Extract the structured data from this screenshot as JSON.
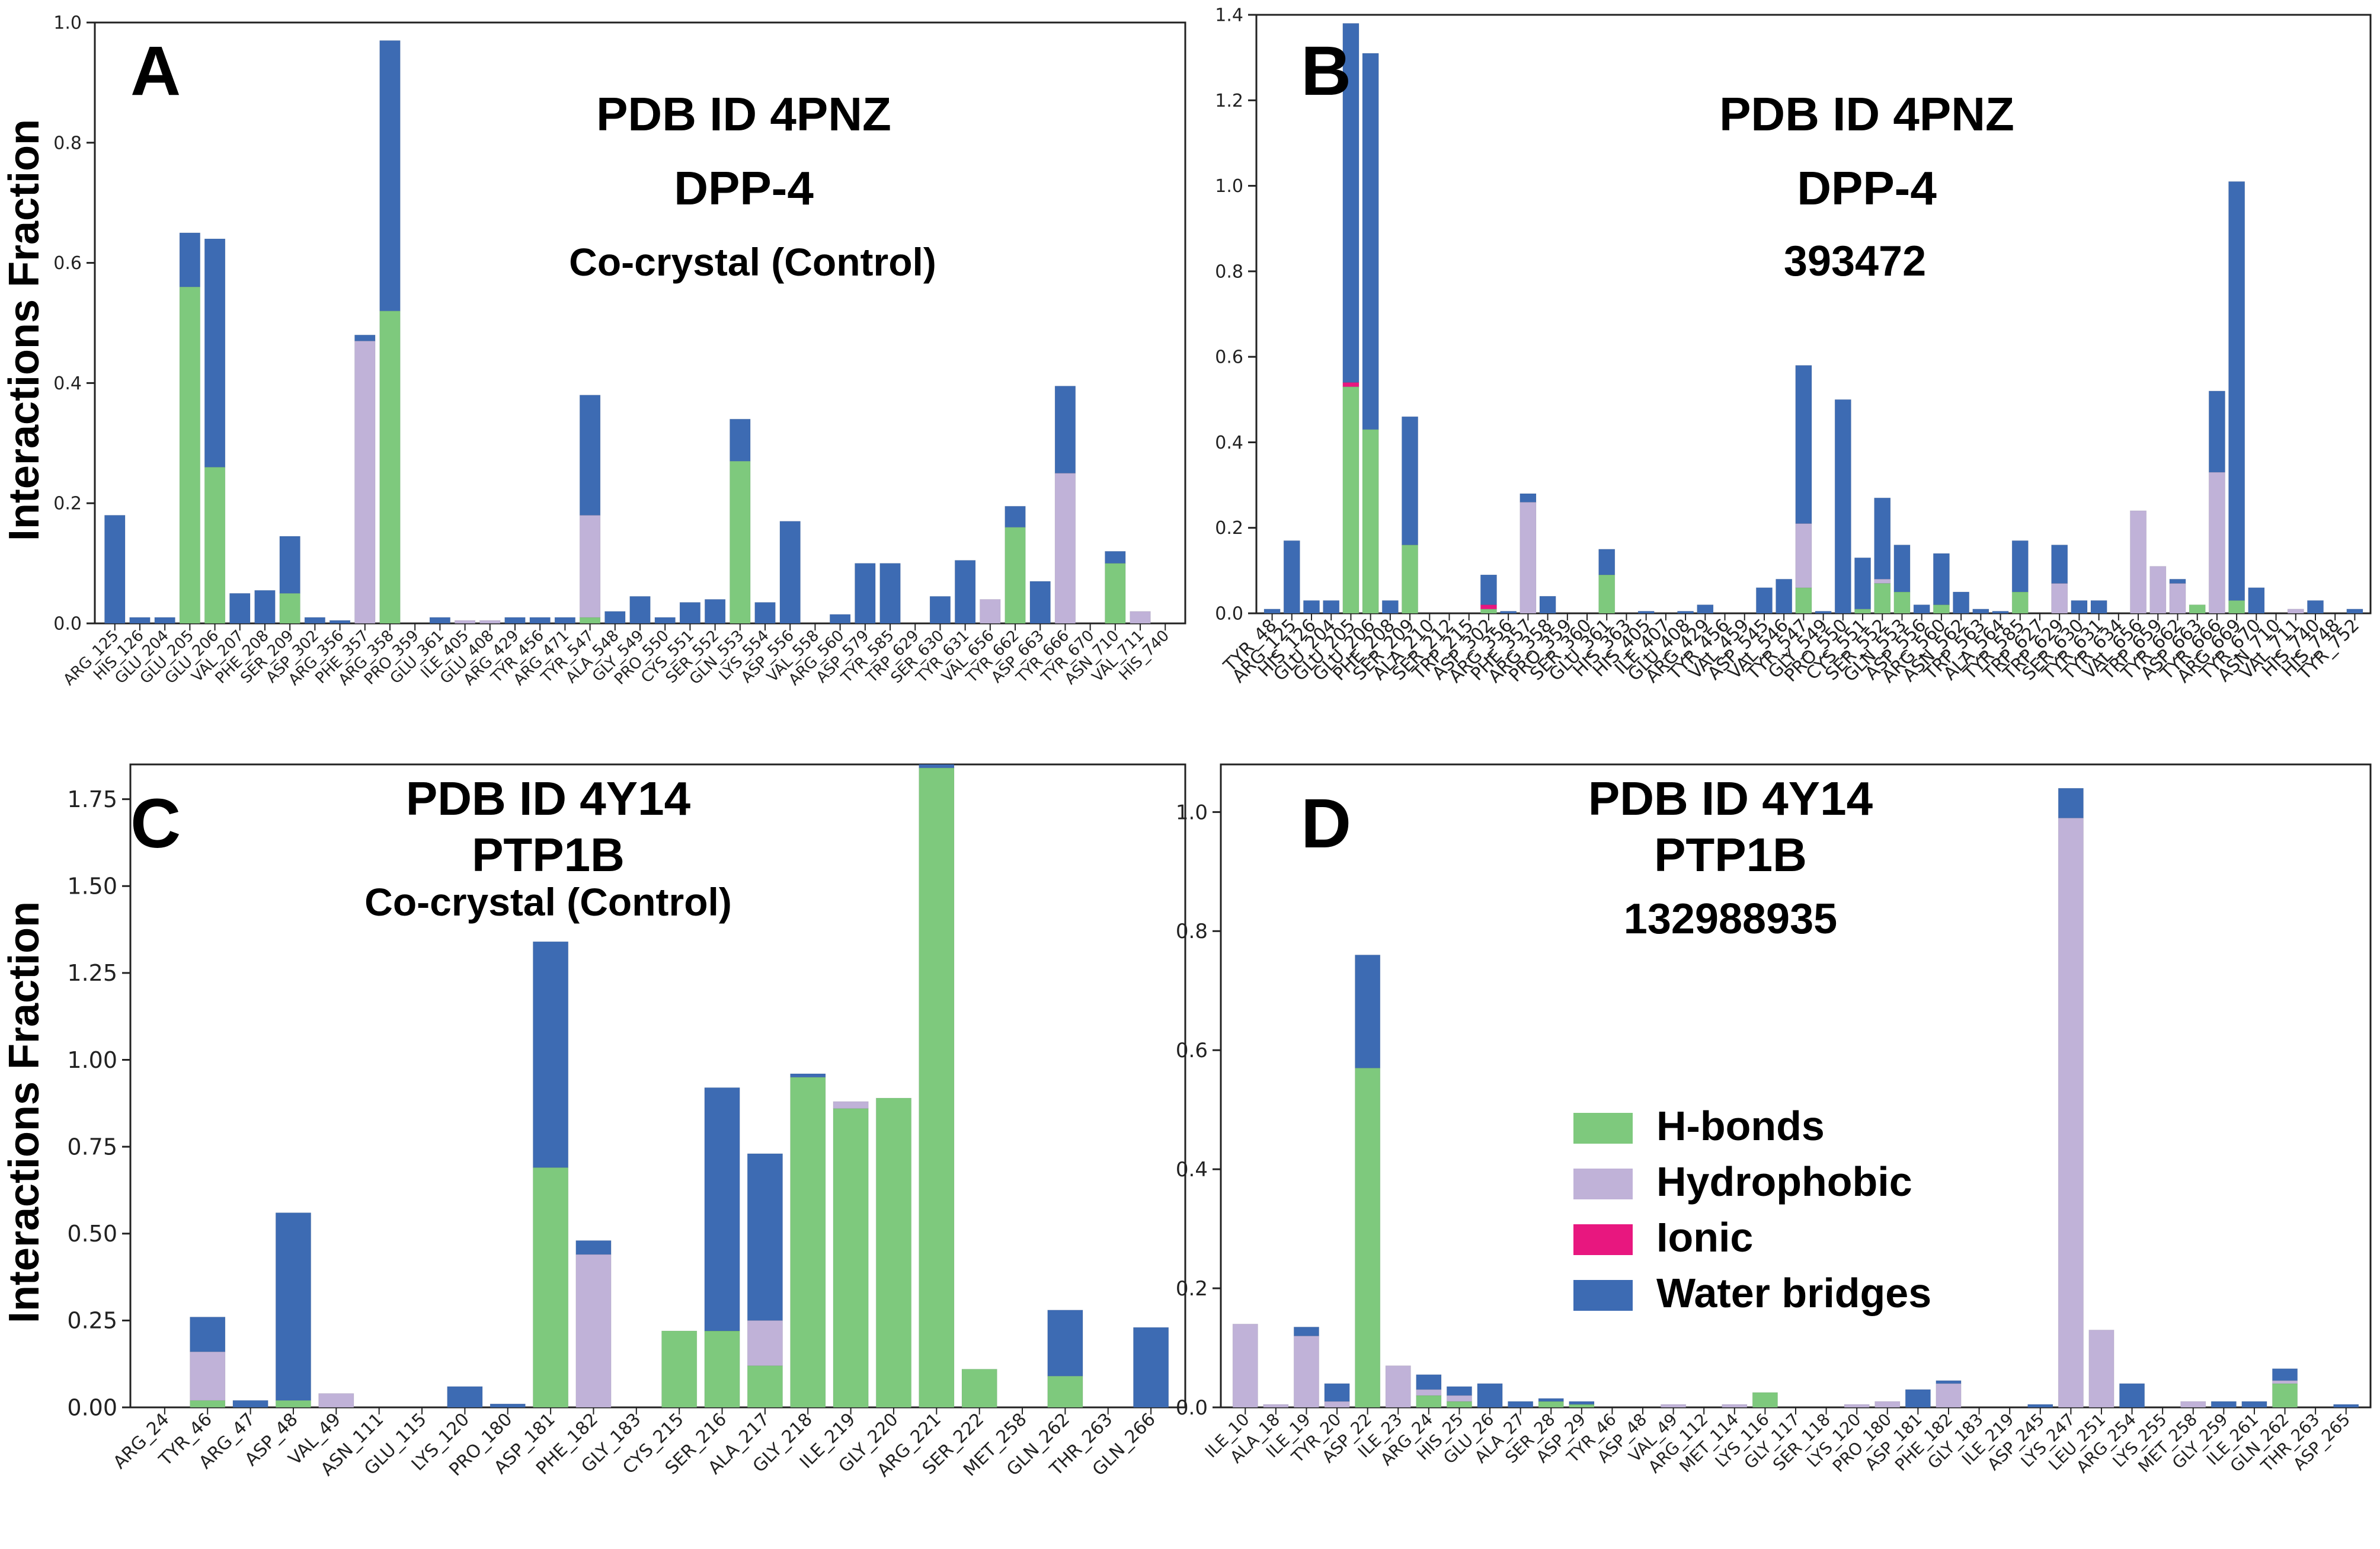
{
  "colors": {
    "hbonds": "#7ec97d",
    "hydrophobic": "#c0b2d8",
    "ionic": "#e8177f",
    "water": "#3d6bb3"
  },
  "legend": {
    "items": [
      {
        "key": "hbonds",
        "label": "H-bonds"
      },
      {
        "key": "hydrophobic",
        "label": "Hydrophobic"
      },
      {
        "key": "ionic",
        "label": "Ionic"
      },
      {
        "key": "water",
        "label": "Water bridges"
      }
    ]
  },
  "chart_data": [
    {
      "id": "A",
      "type": "bar",
      "stacked": true,
      "title_lines": [
        "PDB ID 4PNZ",
        "DPP-4",
        "Co-crystal (Control)"
      ],
      "ylabel": "Interactions Fraction",
      "xlabel": "",
      "ylim": [
        0,
        1.0
      ],
      "yticks": [
        "0.0",
        "0.2",
        "0.4",
        "0.6",
        "0.8",
        "1.0"
      ],
      "categories": [
        "ARG_125",
        "HIS_126",
        "GLU_204",
        "GLU_205",
        "GLU_206",
        "VAL_207",
        "PHE_208",
        "SER_209",
        "ASP_302",
        "ARG_356",
        "PHE_357",
        "ARG_358",
        "PRO_359",
        "GLU_361",
        "ILE_405",
        "GLU_408",
        "ARG_429",
        "TYR_456",
        "ARG_471",
        "TYR_547",
        "ALA_548",
        "GLY_549",
        "PRO_550",
        "CYS_551",
        "SER_552",
        "GLN_553",
        "LYS_554",
        "ASP_556",
        "VAL_558",
        "ARG_560",
        "ASP_579",
        "TYR_585",
        "TRP_629",
        "SER_630",
        "TYR_631",
        "VAL_656",
        "TYR_662",
        "ASP_663",
        "TYR_666",
        "TYR_670",
        "ASN_710",
        "VAL_711",
        "HIS_740"
      ],
      "series": [
        {
          "key": "hbonds",
          "name": "H-bonds",
          "values": [
            0,
            0,
            0,
            0.56,
            0.26,
            0,
            0,
            0.05,
            0,
            0,
            0,
            0.52,
            0,
            0,
            0,
            0,
            0,
            0,
            0,
            0.01,
            0,
            0,
            0,
            0,
            0,
            0.27,
            0,
            0,
            0,
            0,
            0,
            0,
            0,
            0,
            0,
            0,
            0.16,
            0,
            0,
            0,
            0.1,
            0,
            0
          ]
        },
        {
          "key": "hydrophobic",
          "name": "Hydrophobic",
          "values": [
            0,
            0,
            0,
            0,
            0,
            0,
            0,
            0,
            0,
            0,
            0.47,
            0,
            0,
            0,
            0.005,
            0.005,
            0,
            0,
            0,
            0.17,
            0,
            0,
            0,
            0,
            0,
            0,
            0,
            0,
            0,
            0,
            0,
            0,
            0,
            0,
            0,
            0.04,
            0,
            0,
            0.25,
            0,
            0,
            0.02,
            0
          ]
        },
        {
          "key": "ionic",
          "name": "Ionic",
          "values": [
            0,
            0,
            0,
            0,
            0,
            0,
            0,
            0,
            0,
            0,
            0,
            0,
            0,
            0,
            0,
            0,
            0,
            0,
            0,
            0,
            0,
            0,
            0,
            0,
            0,
            0,
            0,
            0,
            0,
            0,
            0,
            0,
            0,
            0,
            0,
            0,
            0,
            0,
            0,
            0,
            0,
            0,
            0
          ]
        },
        {
          "key": "water",
          "name": "Water bridges",
          "values": [
            0.18,
            0.01,
            0.01,
            0.09,
            0.38,
            0.05,
            0.055,
            0.095,
            0.01,
            0.005,
            0.01,
            0.45,
            0,
            0.01,
            0,
            0,
            0.01,
            0.01,
            0.01,
            0.2,
            0.02,
            0.045,
            0.01,
            0.035,
            0.04,
            0.07,
            0.035,
            0.17,
            0,
            0.015,
            0.1,
            0.1,
            0,
            0.045,
            0.105,
            0,
            0.035,
            0.07,
            0.145,
            0,
            0.02,
            0,
            0
          ]
        }
      ]
    },
    {
      "id": "B",
      "type": "bar",
      "stacked": true,
      "title_lines": [
        "PDB ID 4PNZ",
        "DPP-4",
        "393472"
      ],
      "ylabel": "",
      "xlabel": "",
      "ylim": [
        0,
        1.4
      ],
      "yticks": [
        "0.0",
        "0.2",
        "0.4",
        "0.6",
        "0.8",
        "1.0",
        "1.2",
        "1.4"
      ],
      "categories": [
        "TYR_48",
        "ARG_125",
        "HIS_126",
        "GLU_204",
        "GLU_205",
        "GLU_206",
        "PHE_208",
        "SER_209",
        "ALA_210",
        "SER_212",
        "TRP_215",
        "ASP_302",
        "ARG_356",
        "PHE_357",
        "ARG_358",
        "PRO_359",
        "SER_360",
        "GLU_361",
        "HIS_363",
        "HIS_405",
        "ILE_407",
        "GLU_408",
        "ARG_429",
        "TYR_456",
        "VAL_459",
        "ASP_545",
        "VAL_546",
        "TYR_547",
        "GLY_549",
        "PRO_550",
        "CYS_551",
        "SER_552",
        "GLN_553",
        "ASP_556",
        "ARG_560",
        "ASN_562",
        "TRP_563",
        "ALA_564",
        "TYR_585",
        "TRP_627",
        "TRP_629",
        "SER_630",
        "TYR_631",
        "TYR_634",
        "VAL_656",
        "TRP_659",
        "TYR_662",
        "ASP_663",
        "TYR_666",
        "ARG_669",
        "TYR_670",
        "ASN_710",
        "VAL_711",
        "HIS_740",
        "HIS_748",
        "TYR_752"
      ],
      "series": [
        {
          "key": "hbonds",
          "name": "H-bonds",
          "values": [
            0,
            0,
            0,
            0,
            0.53,
            0.43,
            0,
            0.16,
            0,
            0,
            0,
            0.01,
            0,
            0,
            0,
            0,
            0,
            0.09,
            0,
            0,
            0,
            0,
            0,
            0,
            0,
            0,
            0,
            0.06,
            0,
            0,
            0.01,
            0.07,
            0.05,
            0,
            0.02,
            0,
            0,
            0,
            0.05,
            0,
            0,
            0,
            0,
            0,
            0,
            0,
            0,
            0.02,
            0,
            0.03,
            0,
            0,
            0,
            0,
            0,
            0
          ]
        },
        {
          "key": "hydrophobic",
          "name": "Hydrophobic",
          "values": [
            0,
            0,
            0,
            0,
            0,
            0,
            0,
            0,
            0,
            0,
            0,
            0,
            0,
            0.26,
            0,
            0,
            0,
            0,
            0,
            0,
            0,
            0,
            0,
            0,
            0,
            0,
            0,
            0.15,
            0,
            0,
            0,
            0.01,
            0,
            0,
            0,
            0,
            0,
            0,
            0,
            0,
            0.07,
            0,
            0,
            0,
            0.24,
            0.11,
            0.07,
            0,
            0.33,
            0,
            0,
            0,
            0.01,
            0,
            0,
            0
          ]
        },
        {
          "key": "ionic",
          "name": "Ionic",
          "values": [
            0,
            0,
            0,
            0,
            0.01,
            0,
            0,
            0,
            0,
            0,
            0,
            0.01,
            0,
            0,
            0,
            0,
            0,
            0,
            0,
            0,
            0,
            0,
            0,
            0,
            0,
            0,
            0,
            0,
            0,
            0,
            0,
            0,
            0,
            0,
            0,
            0,
            0,
            0,
            0,
            0,
            0,
            0,
            0,
            0,
            0,
            0,
            0,
            0,
            0,
            0,
            0,
            0,
            0,
            0,
            0,
            0
          ]
        },
        {
          "key": "water",
          "name": "Water bridges",
          "values": [
            0.01,
            0.17,
            0.03,
            0.03,
            0.84,
            0.88,
            0.03,
            0.3,
            0,
            0,
            0,
            0.07,
            0.005,
            0.02,
            0.04,
            0,
            0,
            0.06,
            0,
            0.005,
            0,
            0.005,
            0.02,
            0,
            0,
            0.06,
            0.08,
            0.37,
            0.005,
            0.5,
            0.12,
            0.19,
            0.11,
            0.02,
            0.12,
            0.05,
            0.01,
            0.005,
            0.12,
            0,
            0.09,
            0.03,
            0.03,
            0,
            0,
            0,
            0.01,
            0,
            0.19,
            0.98,
            0.06,
            0,
            0,
            0.03,
            0,
            0.01
          ]
        }
      ]
    },
    {
      "id": "C",
      "type": "bar",
      "stacked": true,
      "title_lines": [
        "PDB ID 4Y14",
        "PTP1B",
        "Co-crystal (Control)"
      ],
      "ylabel": "Interactions Fraction",
      "xlabel": "",
      "ylim": [
        0,
        1.85
      ],
      "yticks": [
        "0.00",
        "0.25",
        "0.50",
        "0.75",
        "1.00",
        "1.25",
        "1.50",
        "1.75"
      ],
      "categories": [
        "ARG_24",
        "TYR_46",
        "ARG_47",
        "ASP_48",
        "VAL_49",
        "ASN_111",
        "GLU_115",
        "LYS_120",
        "PRO_180",
        "ASP_181",
        "PHE_182",
        "GLY_183",
        "CYS_215",
        "SER_216",
        "ALA_217",
        "GLY_218",
        "ILE_219",
        "GLY_220",
        "ARG_221",
        "SER_222",
        "MET_258",
        "GLN_262",
        "THR_263",
        "GLN_266"
      ],
      "series": [
        {
          "key": "hbonds",
          "name": "H-bonds",
          "values": [
            0,
            0.02,
            0,
            0.02,
            0,
            0,
            0,
            0,
            0,
            0.69,
            0,
            0,
            0.22,
            0.22,
            0.12,
            0.95,
            0.86,
            0.89,
            1.84,
            0.11,
            0,
            0.09,
            0,
            0
          ]
        },
        {
          "key": "hydrophobic",
          "name": "Hydrophobic",
          "values": [
            0,
            0.14,
            0,
            0,
            0.04,
            0,
            0,
            0,
            0,
            0,
            0.44,
            0,
            0,
            0,
            0.13,
            0,
            0.02,
            0,
            0,
            0,
            0,
            0,
            0,
            0
          ]
        },
        {
          "key": "ionic",
          "name": "Ionic",
          "values": [
            0,
            0,
            0,
            0,
            0,
            0,
            0,
            0,
            0,
            0,
            0,
            0,
            0,
            0,
            0,
            0,
            0,
            0,
            0,
            0,
            0,
            0,
            0,
            0
          ]
        },
        {
          "key": "water",
          "name": "Water bridges",
          "values": [
            0,
            0.1,
            0.02,
            0.54,
            0,
            0,
            0,
            0.06,
            0.01,
            0.65,
            0.04,
            0,
            0,
            0.7,
            0.48,
            0.01,
            0,
            0,
            0.01,
            0,
            0,
            0.19,
            0,
            0.23
          ]
        }
      ]
    },
    {
      "id": "D",
      "type": "bar",
      "stacked": true,
      "title_lines": [
        "PDB ID 4Y14",
        "PTP1B",
        "132988935"
      ],
      "ylabel": "",
      "xlabel": "",
      "ylim": [
        0,
        1.08
      ],
      "yticks": [
        "0.0",
        "0.2",
        "0.4",
        "0.6",
        "0.8",
        "1.0"
      ],
      "categories": [
        "ILE_10",
        "ALA_18",
        "ILE_19",
        "TYR_20",
        "ASP_22",
        "ILE_23",
        "ARG_24",
        "HIS_25",
        "GLU_26",
        "ALA_27",
        "SER_28",
        "ASP_29",
        "TYR_46",
        "ASP_48",
        "VAL_49",
        "ARG_112",
        "MET_114",
        "LYS_116",
        "GLY_117",
        "SER_118",
        "LYS_120",
        "PRO_180",
        "ASP_181",
        "PHE_182",
        "GLY_183",
        "ILE_219",
        "ASP_245",
        "LYS_247",
        "LEU_251",
        "ARG_254",
        "LYS_255",
        "MET_258",
        "GLY_259",
        "ILE_261",
        "GLN_262",
        "THR_263",
        "ASP_265"
      ],
      "series": [
        {
          "key": "hbonds",
          "name": "H-bonds",
          "values": [
            0,
            0,
            0,
            0,
            0.57,
            0,
            0.02,
            0.01,
            0,
            0,
            0.01,
            0.005,
            0,
            0,
            0,
            0,
            0,
            0.025,
            0,
            0,
            0,
            0,
            0,
            0,
            0,
            0,
            0,
            0,
            0,
            0,
            0,
            0,
            0,
            0,
            0.04,
            0,
            0
          ]
        },
        {
          "key": "hydrophobic",
          "name": "Hydrophobic",
          "values": [
            0.14,
            0.005,
            0.12,
            0.01,
            0,
            0.07,
            0.01,
            0.01,
            0,
            0,
            0,
            0,
            0,
            0,
            0.005,
            0,
            0.005,
            0,
            0,
            0,
            0.005,
            0.01,
            0,
            0.04,
            0,
            0,
            0,
            0.99,
            0.13,
            0,
            0,
            0.01,
            0,
            0,
            0.005,
            0,
            0
          ]
        },
        {
          "key": "ionic",
          "name": "Ionic",
          "values": [
            0,
            0,
            0,
            0,
            0,
            0,
            0,
            0,
            0,
            0,
            0,
            0,
            0,
            0,
            0,
            0,
            0,
            0,
            0,
            0,
            0,
            0,
            0,
            0,
            0,
            0,
            0,
            0,
            0,
            0,
            0,
            0,
            0,
            0,
            0,
            0,
            0
          ]
        },
        {
          "key": "water",
          "name": "Water bridges",
          "values": [
            0,
            0,
            0.015,
            0.03,
            0.19,
            0,
            0.025,
            0.015,
            0.04,
            0.01,
            0.005,
            0.005,
            0,
            0,
            0,
            0,
            0,
            0,
            0,
            0,
            0,
            0,
            0.03,
            0.005,
            0,
            0,
            0.005,
            0.05,
            0,
            0.04,
            0,
            0,
            0.01,
            0.01,
            0.02,
            0,
            0.005
          ]
        }
      ]
    }
  ]
}
